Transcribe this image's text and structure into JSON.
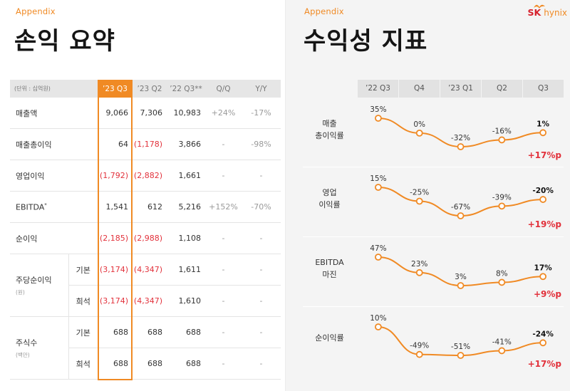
{
  "left": {
    "appendix": "Appendix",
    "title": "손익 요약",
    "unit": "(단위 : 십억원)",
    "columns": [
      "’23 Q3",
      "’23 Q2",
      "’22 Q3**",
      "Q/Q",
      "Y/Y"
    ],
    "rows": [
      {
        "label": "매출액",
        "sup": "",
        "cells": [
          "9,066",
          "7,306",
          "10,983",
          "+24%",
          "-17%"
        ]
      },
      {
        "label": "매출총이익",
        "sup": "",
        "cells": [
          "64",
          "(1,178)",
          "3,866",
          "-",
          "-98%"
        ]
      },
      {
        "label": "영업이익",
        "sup": "",
        "cells": [
          "(1,792)",
          "(2,882)",
          "1,661",
          "-",
          "-"
        ]
      },
      {
        "label": "EBITDA",
        "sup": "*",
        "cells": [
          "1,541",
          "612",
          "5,216",
          "+152%",
          "-70%"
        ]
      },
      {
        "label": "순이익",
        "sup": "",
        "cells": [
          "(2,185)",
          "(2,988)",
          "1,108",
          "-",
          "-"
        ]
      }
    ],
    "eps": {
      "label": "주당순이익",
      "sublabel": "(원)",
      "rows": [
        {
          "sub": "기본",
          "cells": [
            "(3,174)",
            "(4,347)",
            "1,611",
            "-",
            "-"
          ]
        },
        {
          "sub": "희석",
          "cells": [
            "(3,174)",
            "(4,347)",
            "1,610",
            "-",
            "-"
          ]
        }
      ]
    },
    "shares": {
      "label": "주식수",
      "sublabel": "(백만)",
      "rows": [
        {
          "sub": "기본",
          "cells": [
            "688",
            "688",
            "688",
            "-",
            "-"
          ]
        },
        {
          "sub": "희석",
          "cells": [
            "688",
            "688",
            "688",
            "-",
            "-"
          ]
        }
      ]
    }
  },
  "right": {
    "appendix": "Appendix",
    "title": "수익성 지표",
    "logo": {
      "sk": "SK",
      "hynix": "hynix"
    },
    "columns": [
      "’22 Q3",
      "Q4",
      "’23 Q1",
      "Q2",
      "Q3"
    ]
  },
  "chart_data": [
    {
      "type": "line",
      "name": "매출 총이익률",
      "label_lines": [
        "매출",
        "총이익률"
      ],
      "categories": [
        "’22 Q3",
        "Q4",
        "’23 Q1",
        "Q2",
        "Q3"
      ],
      "values": [
        35,
        0,
        -32,
        -16,
        1
      ],
      "labels": [
        "35%",
        "0%",
        "-32%",
        "-16%",
        "1%"
      ],
      "delta": "+17%p"
    },
    {
      "type": "line",
      "name": "영업 이익률",
      "label_lines": [
        "영업",
        "이익률"
      ],
      "categories": [
        "’22 Q3",
        "Q4",
        "’23 Q1",
        "Q2",
        "Q3"
      ],
      "values": [
        15,
        -25,
        -67,
        -39,
        -20
      ],
      "labels": [
        "15%",
        "-25%",
        "-67%",
        "-39%",
        "-20%"
      ],
      "delta": "+19%p"
    },
    {
      "type": "line",
      "name": "EBITDA 마진",
      "label_lines": [
        "EBITDA",
        "마진"
      ],
      "categories": [
        "’22 Q3",
        "Q4",
        "’23 Q1",
        "Q2",
        "Q3"
      ],
      "values": [
        47,
        23,
        3,
        8,
        17
      ],
      "labels": [
        "47%",
        "23%",
        "3%",
        "8%",
        "17%"
      ],
      "delta": "+9%p"
    },
    {
      "type": "line",
      "name": "순이익률",
      "label_lines": [
        "순이익률"
      ],
      "categories": [
        "’22 Q3",
        "Q4",
        "’23 Q1",
        "Q2",
        "Q3"
      ],
      "values": [
        10,
        -49,
        -51,
        -41,
        -24
      ],
      "labels": [
        "10%",
        "-49%",
        "-51%",
        "-41%",
        "-24%"
      ],
      "delta": "+17%p"
    }
  ],
  "colors": {
    "accent": "#f08a24",
    "negative": "#e2323c",
    "brand_red": "#d6202c"
  }
}
